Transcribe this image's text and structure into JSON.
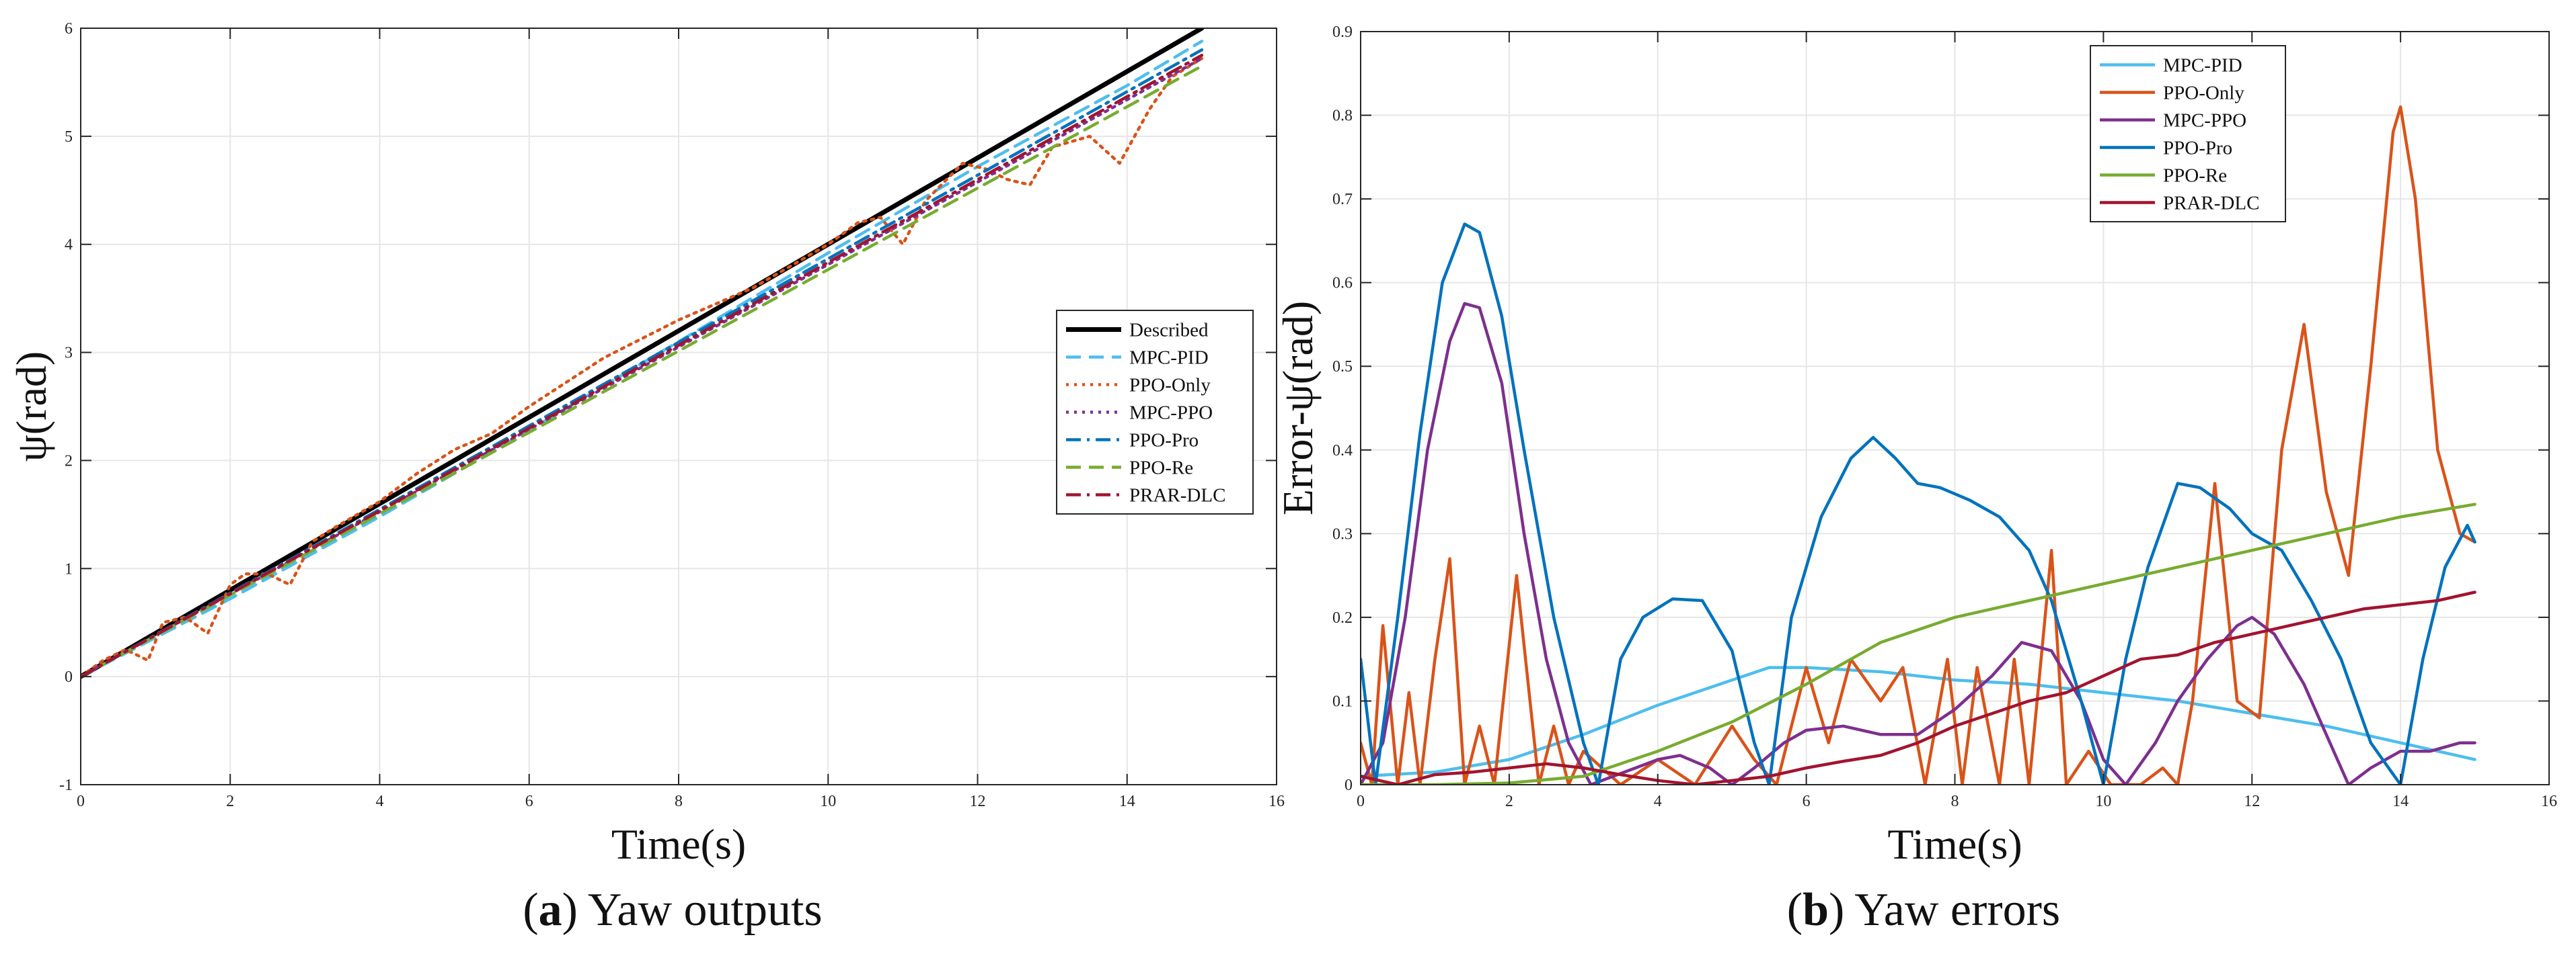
{
  "colors": {
    "Described": "#000000",
    "MPC-PID": "#4DBEEE",
    "PPO-Only": "#D95319",
    "MPC-PPO": "#7E2F8E",
    "PPO-Pro": "#0072BD",
    "PPO-Re": "#77AC30",
    "PRAR-DLC": "#A2142F"
  },
  "captions": {
    "a": {
      "letter": "a",
      "text": "Yaw outputs"
    },
    "b": {
      "letter": "b",
      "text": "Yaw errors"
    }
  },
  "chart_data": [
    {
      "id": "a",
      "type": "line",
      "title": "",
      "xlabel": "Time(s)",
      "ylabel": "ψ(rad)",
      "xlim": [
        0,
        16
      ],
      "ylim": [
        -1,
        6
      ],
      "xticks": [
        "0",
        "2",
        "4",
        "6",
        "8",
        "10",
        "12",
        "14",
        "16"
      ],
      "yticks": [
        "-1",
        "0",
        "1",
        "2",
        "3",
        "4",
        "5",
        "6"
      ],
      "grid": true,
      "legend_position": "right",
      "series": [
        {
          "name": "Described",
          "style": "solid",
          "width": "thick",
          "x": [
            0,
            15
          ],
          "y": [
            0,
            6.0
          ]
        },
        {
          "name": "MPC-PID",
          "style": "dashed",
          "x": [
            0,
            2,
            4,
            6,
            8,
            10,
            12,
            14,
            15
          ],
          "y": [
            0,
            0.72,
            1.48,
            2.28,
            3.1,
            3.92,
            4.72,
            5.47,
            5.88
          ]
        },
        {
          "name": "PPO-Only",
          "style": "dotted",
          "x": [
            0,
            0.3,
            0.6,
            0.9,
            1.1,
            1.4,
            1.7,
            2.0,
            2.2,
            2.5,
            2.8,
            3.1,
            3.4,
            4.0,
            4.5,
            5.0,
            5.5,
            6.0,
            7.0,
            8.0,
            8.5,
            9.0,
            9.5,
            10.0,
            10.4,
            10.7,
            11.0,
            11.3,
            11.8,
            12.1,
            12.4,
            12.7,
            13.0,
            13.5,
            13.9,
            14.3,
            14.6,
            15.0
          ],
          "y": [
            0,
            0.15,
            0.25,
            0.15,
            0.5,
            0.55,
            0.4,
            0.85,
            0.95,
            0.95,
            0.85,
            1.25,
            1.38,
            1.62,
            1.88,
            2.1,
            2.25,
            2.5,
            2.95,
            3.3,
            3.45,
            3.6,
            3.8,
            4.0,
            4.2,
            4.25,
            4.0,
            4.4,
            4.75,
            4.7,
            4.6,
            4.55,
            4.9,
            5.0,
            4.75,
            5.25,
            5.55,
            5.72
          ]
        },
        {
          "name": "MPC-PPO",
          "style": "dotted",
          "x": [
            0,
            15
          ],
          "y": [
            0,
            5.72
          ]
        },
        {
          "name": "PPO-Pro",
          "style": "dashdot",
          "x": [
            0,
            15
          ],
          "y": [
            0,
            5.8
          ]
        },
        {
          "name": "PPO-Re",
          "style": "dashed",
          "x": [
            0,
            15
          ],
          "y": [
            0,
            5.65
          ]
        },
        {
          "name": "PRAR-DLC",
          "style": "dashdot",
          "x": [
            0,
            15
          ],
          "y": [
            0,
            5.75
          ]
        }
      ]
    },
    {
      "id": "b",
      "type": "line",
      "title": "",
      "xlabel": "Time(s)",
      "ylabel": "Error-ψ(rad)",
      "xlim": [
        0,
        16
      ],
      "ylim": [
        0,
        0.9
      ],
      "xticks": [
        "0",
        "2",
        "4",
        "6",
        "8",
        "10",
        "12",
        "14",
        "16"
      ],
      "yticks": [
        "0",
        "0.1",
        "0.2",
        "0.3",
        "0.4",
        "0.5",
        "0.6",
        "0.7",
        "0.8",
        "0.9"
      ],
      "grid": true,
      "legend_position": "top-center",
      "series": [
        {
          "name": "MPC-PID",
          "style": "solid",
          "x": [
            0,
            1,
            2,
            3,
            4,
            5,
            5.5,
            6,
            7,
            8,
            9,
            10,
            11,
            12,
            13,
            14,
            15
          ],
          "y": [
            0.01,
            0.015,
            0.03,
            0.06,
            0.095,
            0.125,
            0.14,
            0.14,
            0.135,
            0.125,
            0.12,
            0.11,
            0.1,
            0.085,
            0.07,
            0.05,
            0.03
          ]
        },
        {
          "name": "PPO-Only",
          "style": "solid",
          "x": [
            0,
            0.15,
            0.3,
            0.5,
            0.65,
            0.8,
            1.0,
            1.2,
            1.4,
            1.6,
            1.8,
            2.1,
            2.4,
            2.6,
            2.8,
            3.0,
            3.5,
            4.0,
            4.5,
            5.0,
            5.3,
            5.6,
            6.0,
            6.3,
            6.6,
            7.0,
            7.3,
            7.6,
            7.9,
            8.1,
            8.3,
            8.6,
            8.8,
            9.0,
            9.3,
            9.5,
            9.8,
            10.1,
            10.5,
            10.8,
            11.0,
            11.2,
            11.5,
            11.8,
            12.1,
            12.4,
            12.7,
            13.0,
            13.3,
            13.6,
            13.9,
            14.0,
            14.2,
            14.5,
            14.8,
            15.0
          ],
          "y": [
            0.05,
            0.0,
            0.19,
            0.0,
            0.11,
            0.0,
            0.15,
            0.27,
            0.0,
            0.07,
            0.0,
            0.25,
            0.0,
            0.07,
            0.0,
            0.04,
            0.0,
            0.03,
            0.0,
            0.07,
            0.03,
            0.0,
            0.14,
            0.05,
            0.15,
            0.1,
            0.14,
            0.0,
            0.15,
            0.0,
            0.14,
            0.0,
            0.15,
            0.0,
            0.28,
            0.0,
            0.04,
            0.0,
            0.0,
            0.02,
            0.0,
            0.1,
            0.36,
            0.1,
            0.08,
            0.4,
            0.55,
            0.35,
            0.25,
            0.5,
            0.78,
            0.81,
            0.7,
            0.4,
            0.3,
            0.29
          ]
        },
        {
          "name": "MPC-PPO",
          "style": "solid",
          "x": [
            0,
            0.3,
            0.6,
            0.9,
            1.2,
            1.4,
            1.6,
            1.9,
            2.2,
            2.5,
            2.8,
            3.1,
            3.4,
            3.7,
            4.0,
            4.3,
            4.7,
            5.0,
            5.3,
            5.7,
            6.0,
            6.5,
            7.0,
            7.5,
            8.0,
            8.5,
            8.9,
            9.3,
            9.7,
            10.0,
            10.3,
            10.7,
            11.0,
            11.4,
            11.8,
            12.0,
            12.3,
            12.7,
            13.0,
            13.3,
            13.6,
            14.0,
            14.4,
            14.8,
            15.0
          ],
          "y": [
            0.0,
            0.05,
            0.2,
            0.4,
            0.53,
            0.575,
            0.57,
            0.48,
            0.3,
            0.15,
            0.05,
            0.0,
            0.01,
            0.02,
            0.03,
            0.035,
            0.02,
            0.0,
            0.02,
            0.05,
            0.065,
            0.07,
            0.06,
            0.06,
            0.09,
            0.13,
            0.17,
            0.16,
            0.1,
            0.03,
            0.0,
            0.05,
            0.1,
            0.15,
            0.19,
            0.2,
            0.18,
            0.12,
            0.06,
            0.0,
            0.02,
            0.04,
            0.04,
            0.05,
            0.05
          ]
        },
        {
          "name": "PPO-Pro",
          "style": "solid",
          "x": [
            0,
            0.2,
            0.5,
            0.8,
            1.1,
            1.4,
            1.6,
            1.9,
            2.2,
            2.6,
            3.0,
            3.2,
            3.5,
            3.8,
            4.2,
            4.6,
            5.0,
            5.3,
            5.5,
            5.8,
            6.2,
            6.6,
            6.9,
            7.2,
            7.5,
            7.8,
            8.2,
            8.6,
            9.0,
            9.3,
            9.7,
            10.0,
            10.3,
            10.6,
            11.0,
            11.3,
            11.7,
            12.0,
            12.4,
            12.8,
            13.2,
            13.6,
            14.0,
            14.3,
            14.6,
            14.9,
            15.0
          ],
          "y": [
            0.15,
            0.0,
            0.2,
            0.42,
            0.6,
            0.67,
            0.66,
            0.56,
            0.4,
            0.2,
            0.05,
            0.0,
            0.15,
            0.2,
            0.222,
            0.22,
            0.16,
            0.05,
            0.0,
            0.2,
            0.32,
            0.39,
            0.415,
            0.39,
            0.36,
            0.355,
            0.34,
            0.32,
            0.28,
            0.22,
            0.1,
            0.0,
            0.15,
            0.26,
            0.36,
            0.355,
            0.33,
            0.3,
            0.28,
            0.22,
            0.15,
            0.05,
            0.0,
            0.15,
            0.26,
            0.31,
            0.29
          ]
        },
        {
          "name": "PPO-Re",
          "style": "solid",
          "x": [
            0,
            1,
            2,
            3,
            4,
            5,
            6,
            7,
            8,
            9,
            10,
            11,
            12,
            13,
            14,
            15
          ],
          "y": [
            0.0,
            0.0,
            0.002,
            0.01,
            0.04,
            0.075,
            0.12,
            0.17,
            0.2,
            0.22,
            0.24,
            0.26,
            0.28,
            0.3,
            0.32,
            0.335
          ]
        },
        {
          "name": "PRAR-DLC",
          "style": "solid",
          "x": [
            0,
            0.5,
            1,
            1.5,
            2,
            2.5,
            3,
            3.5,
            4,
            4.5,
            5,
            5.5,
            6,
            6.5,
            7,
            7.5,
            8,
            8.5,
            9,
            9.5,
            10,
            10.5,
            11,
            11.5,
            12,
            12.5,
            13,
            13.5,
            14,
            14.5,
            15
          ],
          "y": [
            0.01,
            0.0,
            0.012,
            0.015,
            0.02,
            0.025,
            0.02,
            0.012,
            0.005,
            0.0,
            0.005,
            0.01,
            0.02,
            0.028,
            0.035,
            0.05,
            0.07,
            0.085,
            0.1,
            0.11,
            0.13,
            0.15,
            0.155,
            0.17,
            0.18,
            0.19,
            0.2,
            0.21,
            0.215,
            0.22,
            0.23
          ]
        }
      ]
    }
  ]
}
